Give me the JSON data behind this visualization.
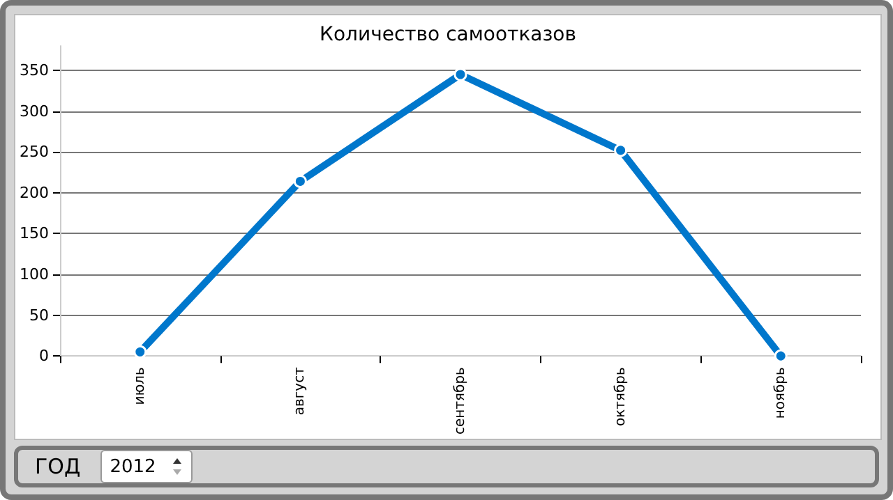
{
  "chart_data": {
    "type": "line",
    "title": "Количество самоотказов",
    "categories": [
      "июль",
      "август",
      "сентябрь",
      "октябрь",
      "ноябрь"
    ],
    "series": [
      {
        "color": "#0077cc",
        "values": [
          5,
          214,
          345,
          252,
          0
        ]
      }
    ],
    "ylim": [
      0,
      380
    ],
    "yticks": [
      0,
      50,
      100,
      150,
      200,
      250,
      300,
      350
    ],
    "grid": "y",
    "marker": "circle",
    "line_style": "solid",
    "annotations": [
      "ГОД",
      "2012"
    ]
  }
}
